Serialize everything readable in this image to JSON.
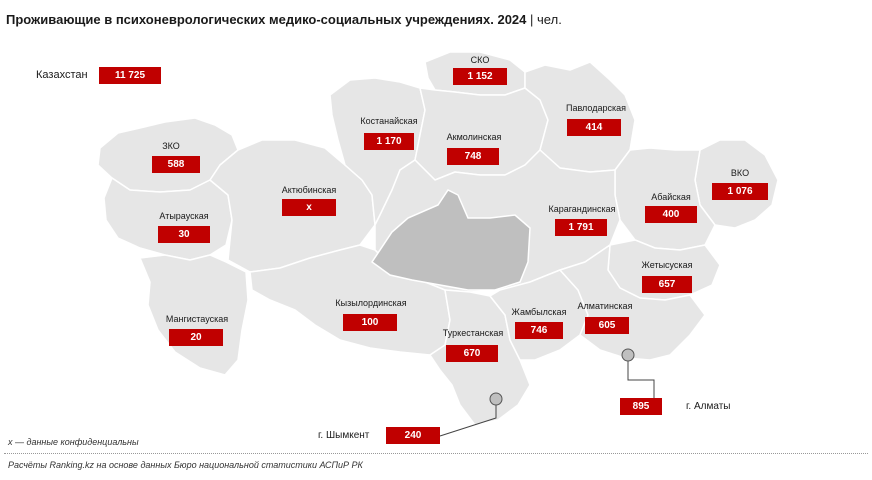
{
  "title": {
    "main": "Проживающие в психоневрологических медико-социальных учреждениях. 2024",
    "sep": "|",
    "unit": "чел."
  },
  "total": {
    "label": "Казахстан",
    "value": "11 725"
  },
  "regions": [
    {
      "key": "zko",
      "label": "ЗКО",
      "value": "588"
    },
    {
      "key": "atyrau",
      "label": "Атырауская",
      "value": "30"
    },
    {
      "key": "mangistau",
      "label": "Мангистауская",
      "value": "20"
    },
    {
      "key": "aktobe",
      "label": "Актюбинская",
      "value": "x"
    },
    {
      "key": "kostanay",
      "label": "Костанайская",
      "value": "1 170"
    },
    {
      "key": "sko",
      "label": "СКО",
      "value": "1 152"
    },
    {
      "key": "akmola",
      "label": "Акмолинская",
      "value": "748"
    },
    {
      "key": "pavlodar",
      "label": "Павлодарская",
      "value": "414"
    },
    {
      "key": "vko",
      "label": "ВКО",
      "value": "1 076"
    },
    {
      "key": "abay",
      "label": "Абайская",
      "value": "400"
    },
    {
      "key": "karaganda",
      "label": "Карагандинская",
      "value": "1 791"
    },
    {
      "key": "zhetysu",
      "label": "Жетысуская",
      "value": "657"
    },
    {
      "key": "kyzylorda",
      "label": "Кызылординская",
      "value": "100"
    },
    {
      "key": "zhambyl",
      "label": "Жамбылская",
      "value": "746"
    },
    {
      "key": "almaty_obl",
      "label": "Алматинская",
      "value": "605"
    },
    {
      "key": "turkestan",
      "label": "Туркестанская",
      "value": "670"
    }
  ],
  "cities": [
    {
      "key": "almaty",
      "label": "г. Алматы",
      "value": "895"
    },
    {
      "key": "shymkent",
      "label": "г. Шымкент",
      "value": "240"
    }
  ],
  "colors": {
    "region_fill": "#e6e6e6",
    "highlight_fill": "#bfbfbf",
    "border": "#ffffff",
    "value_bg": "#c00000"
  },
  "note": "x — данные конфиденциальны",
  "source": "Расчёты Ranking.kz на основе данных Бюро национальной статистики АСПиР РК"
}
